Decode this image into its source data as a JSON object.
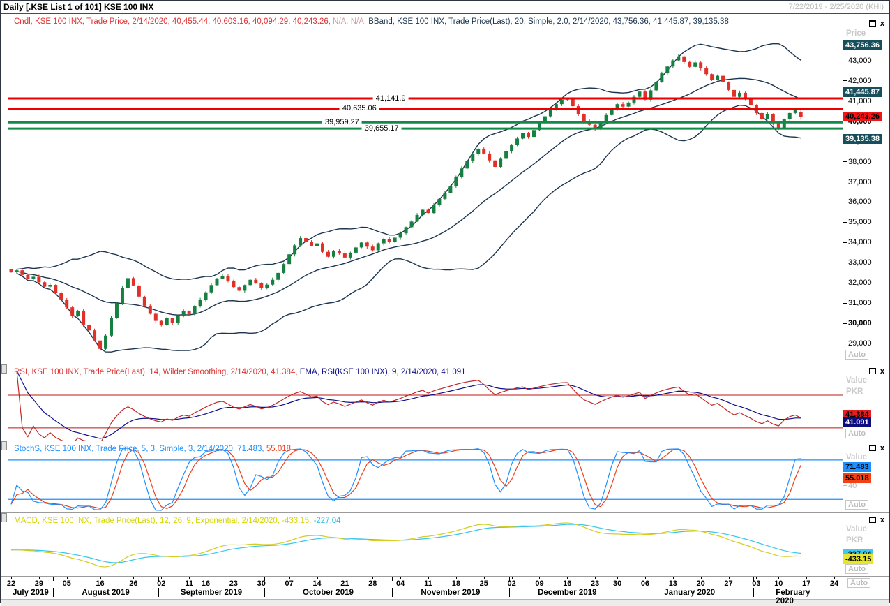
{
  "titlebar": {
    "title": "Daily [.KSE List 1 of 101] KSE 100 INX",
    "range": "7/22/2019 - 2/25/2020 (KHI)"
  },
  "labels": {
    "auto": "Auto",
    "price": "Price",
    "value": "Value",
    "pkr": "PKR",
    "close_icon": "x"
  },
  "legends": {
    "main": {
      "cndl": "Cndl, KSE 100 INX, Trade Price, 2/14/2020, 40,455.44, 40,603.16, 40,094.29, 40,243.26, ",
      "na": "N/A, N/A, ",
      "bband": "BBand, KSE 100 INX, Trade Price(Last), 20, Simple, 2.0, 2/14/2020, 43,756.36, 41,445.87, 39,135.38"
    },
    "rsi": {
      "rsi": "RSI, KSE 100 INX, Trade Price(Last), 14, Wilder Smoothing, 2/14/2020, 41.384, ",
      "ema": "EMA, RSI(KSE 100 INX), 9, 2/14/2020, 41.091"
    },
    "stoch": {
      "main": "StochS, KSE 100 INX, Trade Price, 5, 3, Simple, 3, 2/14/2020, 71.483, ",
      "d": "55.018"
    },
    "macd": {
      "main": "MACD, KSE 100 INX, Trade Price(Last), 12, 26, 9, Exponential, 2/14/2020, -433.15, ",
      "signal": "-227.04"
    }
  },
  "axes": {
    "main": {
      "ticks": [
        {
          "v": 43000,
          "label": "43,000",
          "bold": false
        },
        {
          "v": 42000,
          "label": "42,000",
          "bold": false
        },
        {
          "v": 41000,
          "label": "41,000",
          "bold": false
        },
        {
          "v": 40000,
          "label": "40,000",
          "bold": true
        },
        {
          "v": 39000,
          "label": "39,000",
          "bold": false
        },
        {
          "v": 38000,
          "label": "38,000",
          "bold": false
        },
        {
          "v": 37000,
          "label": "37,000",
          "bold": false
        },
        {
          "v": 36000,
          "label": "36,000",
          "bold": false
        },
        {
          "v": 35000,
          "label": "35,000",
          "bold": false
        },
        {
          "v": 34000,
          "label": "34,000",
          "bold": false
        },
        {
          "v": 33000,
          "label": "33,000",
          "bold": false
        },
        {
          "v": 32000,
          "label": "32,000",
          "bold": false
        },
        {
          "v": 31000,
          "label": "31,000",
          "bold": false
        },
        {
          "v": 30000,
          "label": "30,000",
          "bold": true
        },
        {
          "v": 29000,
          "label": "29,000",
          "bold": false
        }
      ],
      "badges": [
        {
          "v": 43756.36,
          "label": "43,756.36",
          "bg": "#17505c",
          "fg": "#ffffff",
          "dy": -7
        },
        {
          "v": 41445.87,
          "label": "41,445.87",
          "bg": "#17505c",
          "fg": "#ffffff",
          "dy": -7
        },
        {
          "v": 40243.26,
          "label": "40,243.26",
          "bg": "#f21515",
          "fg": "#000000",
          "dy": -7
        },
        {
          "v": 39135.38,
          "label": "39,135.38",
          "bg": "#17505c",
          "fg": "#ffffff",
          "dy": -7
        }
      ]
    },
    "rsi": {
      "badges": [
        {
          "v": 41.384,
          "label": "41.384",
          "bg": "#e02020",
          "fg": "#000000",
          "dy": -12
        },
        {
          "v": 41.091,
          "label": "41.091",
          "bg": "#0d0d7e",
          "fg": "#ffffff",
          "dy": -1
        }
      ]
    },
    "stoch": {
      "ticks": [
        {
          "v": 40,
          "label": "40"
        }
      ],
      "badges": [
        {
          "v": 71.483,
          "label": "71.483",
          "bg": "#1e8fff",
          "fg": "#000000",
          "dy": -5
        },
        {
          "v": 55.018,
          "label": "55.018",
          "bg": "#f04214",
          "fg": "#000000",
          "dy": -4
        }
      ]
    },
    "macd": {
      "badges": [
        {
          "v": -227.04,
          "label": "-227.04",
          "bg": "#3fc8f0",
          "fg": "#000000",
          "dy": -7
        },
        {
          "v": -433.15,
          "label": "-433.15",
          "bg": "#e6e62e",
          "fg": "#000000",
          "dy": -6
        }
      ]
    }
  },
  "xaxis": {
    "day_ticks": [
      {
        "slot": 0,
        "label": "22"
      },
      {
        "slot": 5,
        "label": "29"
      },
      {
        "slot": 10,
        "label": "05"
      },
      {
        "slot": 16,
        "label": "16"
      },
      {
        "slot": 22,
        "label": "26"
      },
      {
        "slot": 27,
        "label": "02"
      },
      {
        "slot": 32,
        "label": "11"
      },
      {
        "slot": 35,
        "label": "16"
      },
      {
        "slot": 40,
        "label": "23"
      },
      {
        "slot": 45,
        "label": "30"
      },
      {
        "slot": 50,
        "label": "07"
      },
      {
        "slot": 55,
        "label": "14"
      },
      {
        "slot": 60,
        "label": "21"
      },
      {
        "slot": 65,
        "label": "28"
      },
      {
        "slot": 70,
        "label": "04"
      },
      {
        "slot": 75,
        "label": "11"
      },
      {
        "slot": 80,
        "label": "18"
      },
      {
        "slot": 85,
        "label": "25"
      },
      {
        "slot": 90,
        "label": "02"
      },
      {
        "slot": 95,
        "label": "09"
      },
      {
        "slot": 100,
        "label": "16"
      },
      {
        "slot": 105,
        "label": "23"
      },
      {
        "slot": 109,
        "label": "30"
      },
      {
        "slot": 114,
        "label": "06"
      },
      {
        "slot": 119,
        "label": "13"
      },
      {
        "slot": 124,
        "label": "20"
      },
      {
        "slot": 129,
        "label": "27"
      },
      {
        "slot": 134,
        "label": "03"
      },
      {
        "slot": 138,
        "label": "10"
      },
      {
        "slot": 143,
        "label": "17"
      },
      {
        "slot": 148,
        "label": "24"
      }
    ],
    "months": [
      {
        "label": "July 2019",
        "start": 0,
        "end": 7
      },
      {
        "label": "August 2019",
        "start": 8,
        "end": 26
      },
      {
        "label": "September 2019",
        "start": 27,
        "end": 45
      },
      {
        "label": "October 2019",
        "start": 46,
        "end": 68
      },
      {
        "label": "November 2019",
        "start": 69,
        "end": 89
      },
      {
        "label": "December 2019",
        "start": 90,
        "end": 110
      },
      {
        "label": "January 2020",
        "start": 111,
        "end": 133
      },
      {
        "label": "February 2020",
        "start": 134,
        "end": 149
      }
    ]
  },
  "colors": {
    "candle_up": "#168040",
    "candle_down": "#e03028",
    "bband": "#1c3550",
    "rsi_line": "#c22828",
    "rsi_ema": "#10108c",
    "rsi_level": "#c01414",
    "stoch_k": "#1e8fff",
    "stoch_d": "#e8401c",
    "stoch_level": "#1e8fff",
    "macd_line": "#d4cc20",
    "macd_signal": "#38c5ee",
    "res_line": "#ee0000",
    "sup_line": "#118a48"
  },
  "chart_data": {
    "type": "candlestick",
    "title": "Daily [.KSE List 1 of 101] KSE 100 INX",
    "x_range": "7/22/2019 - 2/25/2020 (KHI)",
    "unit": "PKR",
    "price": {
      "ylim": [
        28500,
        44800
      ],
      "total_slots": 150,
      "first_open": 32700,
      "dates": [
        "07/22",
        "07/23",
        "07/24",
        "07/25",
        "07/26",
        "07/29",
        "07/30",
        "07/31",
        "08/01",
        "08/02",
        "08/05",
        "08/06",
        "08/07",
        "08/08",
        "08/09",
        "08/15",
        "08/16",
        "08/19",
        "08/20",
        "08/21",
        "08/22",
        "08/23",
        "08/26",
        "08/27",
        "08/28",
        "08/29",
        "08/30",
        "09/02",
        "09/03",
        "09/04",
        "09/05",
        "09/06",
        "09/11",
        "09/12",
        "09/13",
        "09/16",
        "09/17",
        "09/18",
        "09/19",
        "09/20",
        "09/23",
        "09/24",
        "09/25",
        "09/26",
        "09/27",
        "09/30",
        "10/01",
        "10/02",
        "10/03",
        "10/04",
        "10/07",
        "10/08",
        "10/09",
        "10/10",
        "10/11",
        "10/14",
        "10/15",
        "10/16",
        "10/17",
        "10/18",
        "10/21",
        "10/22",
        "10/23",
        "10/24",
        "10/25",
        "10/28",
        "10/29",
        "10/30",
        "10/31",
        "11/01",
        "11/04",
        "11/05",
        "11/06",
        "11/07",
        "11/08",
        "11/11",
        "11/12",
        "11/13",
        "11/14",
        "11/15",
        "11/18",
        "11/19",
        "11/20",
        "11/21",
        "11/22",
        "11/25",
        "11/26",
        "11/27",
        "11/28",
        "11/29",
        "12/02",
        "12/03",
        "12/04",
        "12/05",
        "12/06",
        "12/09",
        "12/10",
        "12/11",
        "12/12",
        "12/13",
        "12/16",
        "12/17",
        "12/18",
        "12/19",
        "12/20",
        "12/23",
        "12/24",
        "12/26",
        "12/27",
        "12/30",
        "12/31",
        "01/01",
        "01/02",
        "01/03",
        "01/06",
        "01/07",
        "01/08",
        "01/09",
        "01/10",
        "01/13",
        "01/14",
        "01/15",
        "01/16",
        "01/17",
        "01/20",
        "01/21",
        "01/22",
        "01/23",
        "01/24",
        "01/27",
        "01/28",
        "01/29",
        "01/30",
        "01/31",
        "02/03",
        "02/04",
        "02/06",
        "02/07",
        "02/10",
        "02/11",
        "02/12",
        "02/13",
        "02/14"
      ],
      "closes": [
        32550,
        32650,
        32420,
        32230,
        32330,
        32060,
        31840,
        31930,
        31540,
        31180,
        30820,
        30380,
        30620,
        29960,
        29680,
        29180,
        28765,
        29420,
        30280,
        31020,
        31780,
        32260,
        31900,
        31350,
        30900,
        30500,
        30150,
        29940,
        30280,
        30040,
        30380,
        30620,
        30480,
        30860,
        31180,
        31560,
        31920,
        32240,
        32380,
        32140,
        31820,
        31640,
        31920,
        32180,
        32020,
        31780,
        31940,
        32180,
        32520,
        32960,
        33440,
        33880,
        34240,
        34060,
        33860,
        33980,
        33560,
        33320,
        33620,
        33480,
        33280,
        33520,
        33780,
        34020,
        33820,
        33640,
        33980,
        34180,
        34060,
        34260,
        34480,
        34780,
        35060,
        35380,
        35640,
        35480,
        35860,
        36180,
        36480,
        36820,
        37260,
        37680,
        38060,
        38380,
        38660,
        38420,
        38080,
        37760,
        38160,
        38520,
        38840,
        39160,
        39420,
        39240,
        39580,
        39920,
        40260,
        40580,
        40860,
        41080,
        41140,
        40760,
        40380,
        40020,
        39840,
        39660,
        39980,
        40320,
        40620,
        40860,
        40740,
        40940,
        41220,
        41480,
        41080,
        41540,
        41960,
        42380,
        42720,
        43020,
        43220,
        42940,
        42700,
        42920,
        42640,
        42340,
        42060,
        42260,
        41940,
        41560,
        41220,
        41420,
        41120,
        40820,
        40420,
        40140,
        40360,
        39920,
        39660,
        40120,
        40420,
        40560,
        40243.26
      ],
      "last_candle": {
        "date": "2/14/2020",
        "open": 40455.44,
        "high": 40603.16,
        "low": 40094.29,
        "close": 40243.26
      },
      "bband": {
        "period": 20,
        "ma_type": "Simple",
        "stdev": 2.0,
        "last": {
          "upper": 43756.36,
          "middle": 41445.87,
          "lower": 39135.38
        }
      },
      "levels": [
        {
          "value": 41141.9,
          "label": "41,141.9",
          "color": "#ee0000",
          "label_x": 550
        },
        {
          "value": 40635.06,
          "label": "40,635.06",
          "color": "#ee0000",
          "label_x": 505
        },
        {
          "value": 39959.27,
          "label": "39,959.27",
          "color": "#118a48",
          "label_x": 480
        },
        {
          "value": 39655.17,
          "label": "39,655.17",
          "color": "#118a48",
          "label_x": 537
        }
      ]
    },
    "rsi": {
      "period": 14,
      "smoothing": "Wilder Smoothing",
      "last": 41.384,
      "ema": {
        "period": 9,
        "last": 41.091
      },
      "levels": [
        70,
        30
      ],
      "ylim": [
        18,
        92
      ]
    },
    "stoch": {
      "k_period": 5,
      "k_smooth": 3,
      "ma_type": "Simple",
      "d_period": 3,
      "last_k": 71.483,
      "last_d": 55.018,
      "levels": [
        80,
        20
      ],
      "ylim": [
        0,
        100
      ]
    },
    "macd": {
      "fast": 12,
      "slow": 26,
      "signal_period": 9,
      "ma_type": "Exponential",
      "last_macd": -433.15,
      "last_signal": -227.04
    }
  }
}
